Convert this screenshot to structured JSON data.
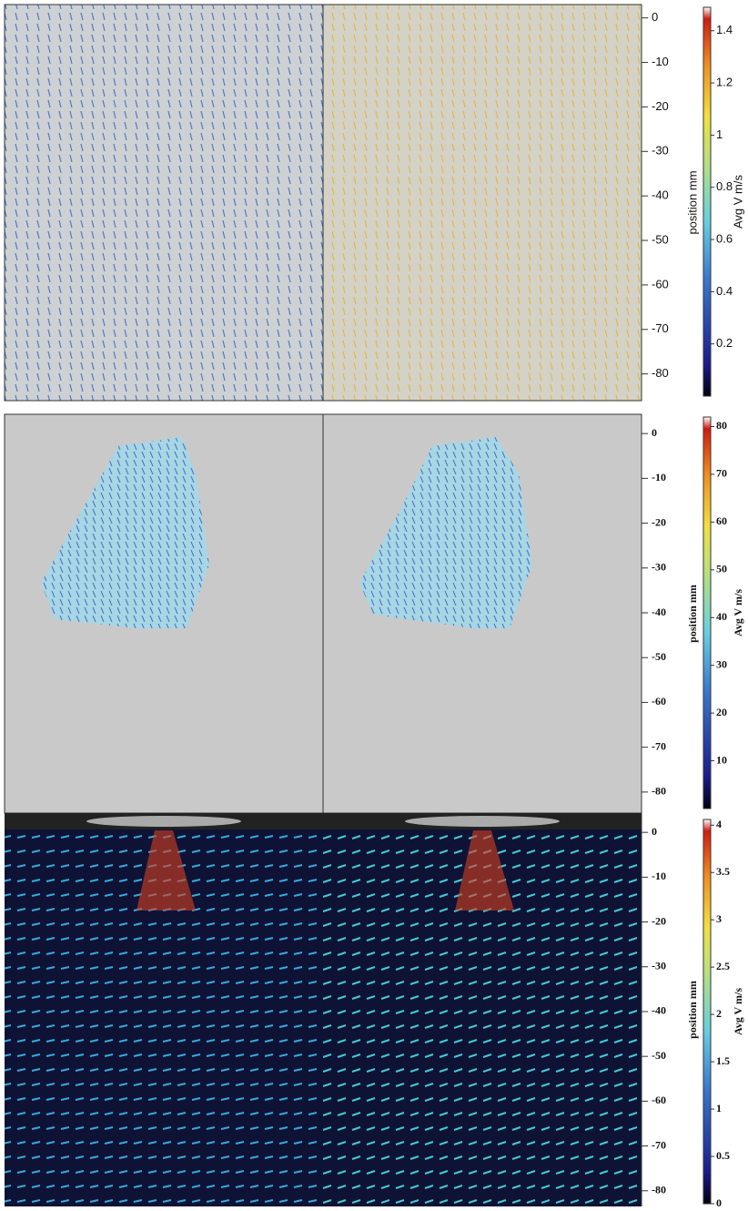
{
  "chart_data": [
    {
      "type": "quiver",
      "ylabel": "position mm",
      "ylim": [
        3,
        -86
      ],
      "yticks": [
        0,
        -10,
        -20,
        -30,
        -40,
        -50,
        -60,
        -70,
        -80
      ],
      "colorbar": {
        "label": "Avg V m/s",
        "lim": [
          0,
          1.49
        ],
        "ticks": [
          0.2,
          0.4,
          0.6,
          0.8,
          1,
          1.2,
          1.4
        ],
        "colormap": "jet"
      }
    },
    {
      "type": "quiver",
      "ylabel": "position mm",
      "ylim": [
        4.3,
        -84.7
      ],
      "yticks": [
        0,
        -10,
        -20,
        -30,
        -40,
        -50,
        -60,
        -70,
        -80
      ],
      "colorbar": {
        "label": "Avg V m/s",
        "lim": [
          0,
          82
        ],
        "ticks": [
          10,
          20,
          30,
          40,
          50,
          60,
          70,
          80
        ],
        "colormap": "jet"
      }
    },
    {
      "type": "quiver",
      "ylabel": "position mm",
      "ylim": [
        4.3,
        -83.5
      ],
      "yticks": [
        0,
        -10,
        -20,
        -30,
        -40,
        -50,
        -60,
        -70,
        -80
      ],
      "colorbar": {
        "label": "Avg V m/s",
        "lim": [
          0,
          4.06
        ],
        "ticks": [
          0,
          0.5,
          1,
          1.5,
          2,
          2.5,
          3,
          3.5,
          4
        ],
        "colormap": "jet"
      }
    }
  ]
}
